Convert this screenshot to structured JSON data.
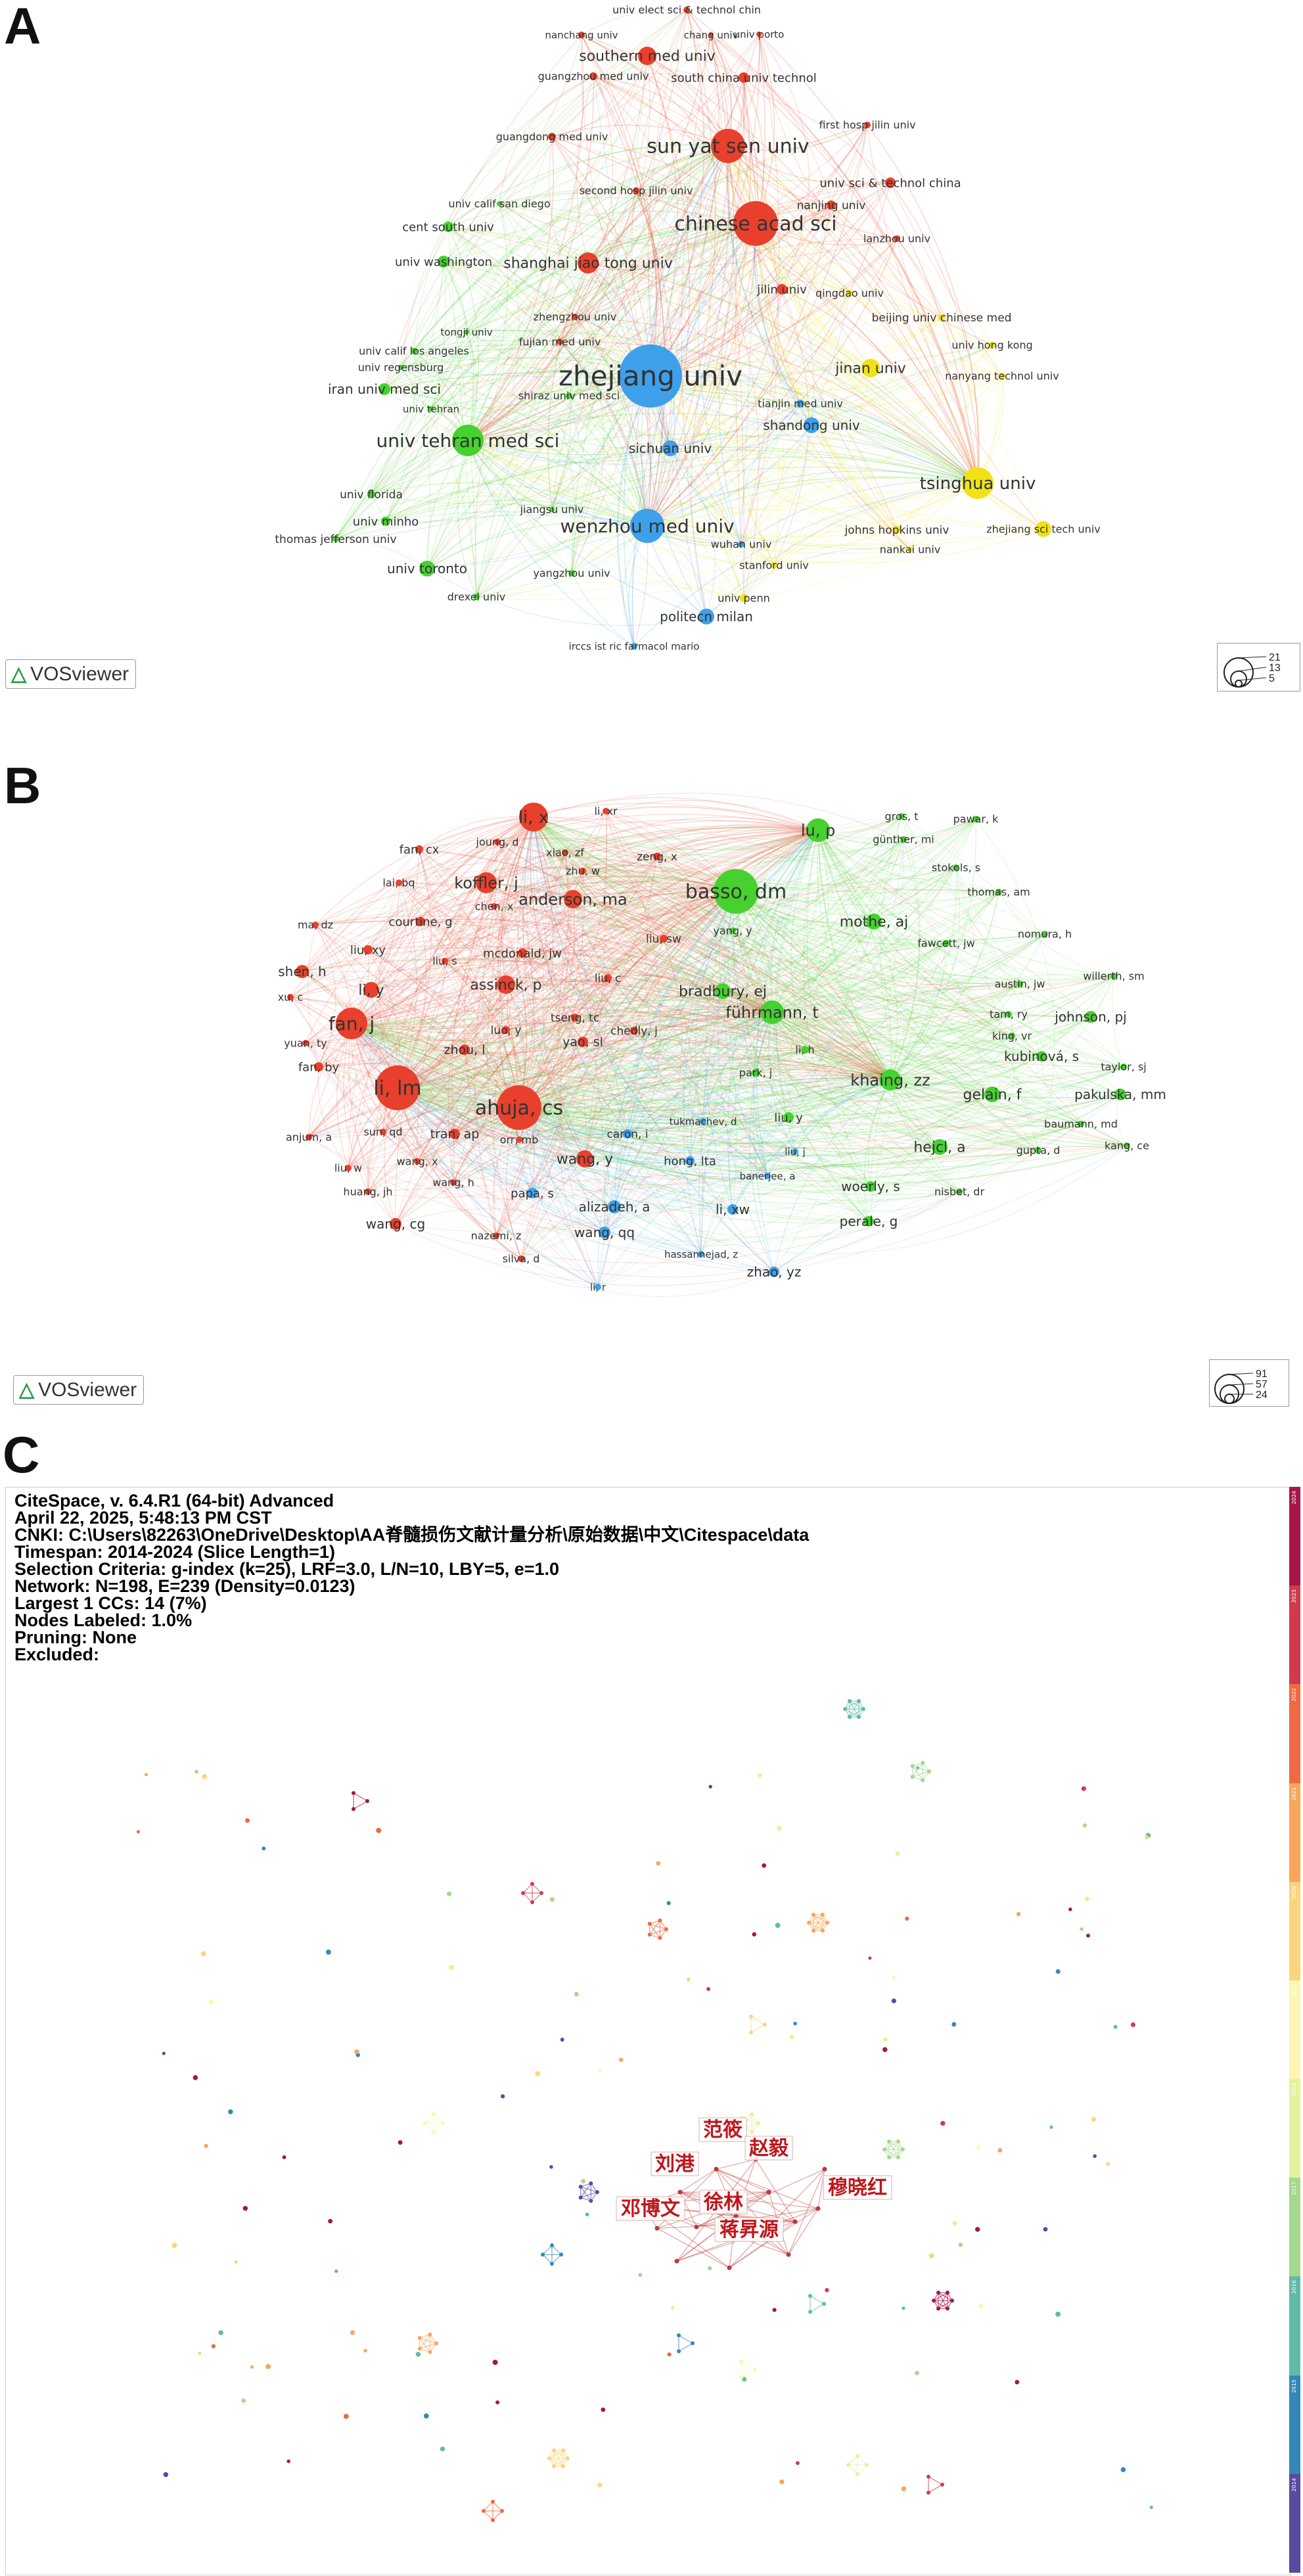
{
  "panels": {
    "a": {
      "letter": "A"
    },
    "b": {
      "letter": "B"
    },
    "c": {
      "letter": "C"
    }
  },
  "vos_logo": "VOSviewer",
  "legend_a": [
    "21",
    "13",
    "5"
  ],
  "legend_b": [
    "91",
    "57",
    "24"
  ],
  "colors": {
    "red": "#e8402c",
    "green": "#46d12f",
    "blue": "#3ea0ea",
    "yellow": "#f0e214",
    "orange_edge": "#f3a25a",
    "cn_label": "#c0151b"
  },
  "network_a": {
    "nodes": [
      {
        "label": "zhejiang univ",
        "cluster": "blue",
        "size": "xl"
      },
      {
        "label": "chinese acad sci",
        "cluster": "red",
        "size": "l"
      },
      {
        "label": "sun yat sen univ",
        "cluster": "red",
        "size": "l"
      },
      {
        "label": "univ tehran med sci",
        "cluster": "green",
        "size": "l"
      },
      {
        "label": "wenzhou med univ",
        "cluster": "blue",
        "size": "l"
      },
      {
        "label": "tsinghua univ",
        "cluster": "yellow",
        "size": "l"
      },
      {
        "label": "shanghai jiao tong univ",
        "cluster": "red",
        "size": "m"
      },
      {
        "label": "southern med univ",
        "cluster": "red",
        "size": "m"
      },
      {
        "label": "jinan univ",
        "cluster": "yellow",
        "size": "m"
      },
      {
        "label": "sichuan univ",
        "cluster": "blue",
        "size": "m"
      },
      {
        "label": "shandong univ",
        "cluster": "blue",
        "size": "m"
      },
      {
        "label": "politecn milan",
        "cluster": "blue",
        "size": "m"
      },
      {
        "label": "univ toronto",
        "cluster": "green",
        "size": "m"
      },
      {
        "label": "iran univ med sci",
        "cluster": "green",
        "size": "m"
      },
      {
        "label": "south china univ technol",
        "cluster": "red",
        "size": "s"
      },
      {
        "label": "univ sci & technol china",
        "cluster": "red",
        "size": "s"
      },
      {
        "label": "nanjing univ",
        "cluster": "red",
        "size": "s"
      },
      {
        "label": "cent south univ",
        "cluster": "green",
        "size": "s"
      },
      {
        "label": "univ washington",
        "cluster": "green",
        "size": "s"
      },
      {
        "label": "univ minho",
        "cluster": "green",
        "size": "s"
      },
      {
        "label": "univ florida",
        "cluster": "green",
        "size": "s"
      },
      {
        "label": "thomas jefferson univ",
        "cluster": "green",
        "size": "s"
      },
      {
        "label": "drexel univ",
        "cluster": "green",
        "size": "s"
      },
      {
        "label": "yangzhou univ",
        "cluster": "green",
        "size": "s"
      },
      {
        "label": "jiangsu univ",
        "cluster": "green",
        "size": "s"
      },
      {
        "label": "univ calif los angeles",
        "cluster": "green",
        "size": "s"
      },
      {
        "label": "univ regensburg",
        "cluster": "green",
        "size": "s"
      },
      {
        "label": "univ calif san diego",
        "cluster": "green",
        "size": "s"
      },
      {
        "label": "univ tehran",
        "cluster": "green",
        "size": "s"
      },
      {
        "label": "shiraz univ med sci",
        "cluster": "green",
        "size": "s"
      },
      {
        "label": "tongji univ",
        "cluster": "green",
        "size": "s"
      },
      {
        "label": "beijing univ chinese med",
        "cluster": "yellow",
        "size": "s"
      },
      {
        "label": "univ hong kong",
        "cluster": "yellow",
        "size": "s"
      },
      {
        "label": "nanyang technol univ",
        "cluster": "yellow",
        "size": "s"
      },
      {
        "label": "zhejiang sci tech univ",
        "cluster": "yellow",
        "size": "s"
      },
      {
        "label": "johns hopkins univ",
        "cluster": "yellow",
        "size": "s"
      },
      {
        "label": "nankai univ",
        "cluster": "yellow",
        "size": "s"
      },
      {
        "label": "stanford univ",
        "cluster": "yellow",
        "size": "s"
      },
      {
        "label": "univ penn",
        "cluster": "yellow",
        "size": "s"
      },
      {
        "label": "qingdao univ",
        "cluster": "yellow",
        "size": "s"
      },
      {
        "label": "tianjin med univ",
        "cluster": "blue",
        "size": "s"
      },
      {
        "label": "wuhan univ",
        "cluster": "blue",
        "size": "s"
      },
      {
        "label": "irccs ist ric farmacol mario",
        "cluster": "blue",
        "size": "s"
      },
      {
        "label": "jilin univ",
        "cluster": "red",
        "size": "s"
      },
      {
        "label": "lanzhou univ",
        "cluster": "red",
        "size": "s"
      },
      {
        "label": "first hosp jilin univ",
        "cluster": "red",
        "size": "s"
      },
      {
        "label": "second hosp jilin univ",
        "cluster": "red",
        "size": "s"
      },
      {
        "label": "guangdong med univ",
        "cluster": "red",
        "size": "s"
      },
      {
        "label": "guangzhou med univ",
        "cluster": "red",
        "size": "s"
      },
      {
        "label": "zhengzhou univ",
        "cluster": "red",
        "size": "s"
      },
      {
        "label": "fujian med univ",
        "cluster": "red",
        "size": "s"
      },
      {
        "label": "nanchang univ",
        "cluster": "red",
        "size": "s"
      },
      {
        "label": "chang univ",
        "cluster": "red",
        "size": "s"
      },
      {
        "label": "univ porto",
        "cluster": "red",
        "size": "s"
      },
      {
        "label": "univ elect sci & technol chin",
        "cluster": "red",
        "size": "s"
      }
    ]
  },
  "network_b": {
    "nodes": [
      {
        "label": "basso, dm",
        "cluster": "green",
        "size": "l"
      },
      {
        "label": "ahuja, cs",
        "cluster": "red",
        "size": "l"
      },
      {
        "label": "li, lm",
        "cluster": "red",
        "size": "l"
      },
      {
        "label": "fan, j",
        "cluster": "red",
        "size": "m"
      },
      {
        "label": "li, x",
        "cluster": "red",
        "size": "m"
      },
      {
        "label": "lu, p",
        "cluster": "green",
        "size": "m"
      },
      {
        "label": "führmann, t",
        "cluster": "green",
        "size": "m"
      },
      {
        "label": "khaing, zz",
        "cluster": "green",
        "size": "m"
      },
      {
        "label": "koffler, j",
        "cluster": "red",
        "size": "m"
      },
      {
        "label": "anderson, ma",
        "cluster": "red",
        "size": "m"
      },
      {
        "label": "assinck, p",
        "cluster": "red",
        "size": "m"
      },
      {
        "label": "li, y",
        "cluster": "red",
        "size": "m"
      },
      {
        "label": "shen, h",
        "cluster": "red",
        "size": "s"
      },
      {
        "label": "wang, y",
        "cluster": "red",
        "size": "m"
      },
      {
        "label": "mothe, aj",
        "cluster": "green",
        "size": "m"
      },
      {
        "label": "bradbury, ej",
        "cluster": "green",
        "size": "m"
      },
      {
        "label": "hejcl, a",
        "cluster": "green",
        "size": "m"
      },
      {
        "label": "gelain, f",
        "cluster": "green",
        "size": "m"
      },
      {
        "label": "johnson, pj",
        "cluster": "green",
        "size": "s"
      },
      {
        "label": "kubinová, s",
        "cluster": "green",
        "size": "s"
      },
      {
        "label": "pakulska, mm",
        "cluster": "green",
        "size": "s"
      },
      {
        "label": "woerly, s",
        "cluster": "green",
        "size": "s"
      },
      {
        "label": "perale, g",
        "cluster": "green",
        "size": "s"
      },
      {
        "label": "alizadeh, a",
        "cluster": "blue",
        "size": "s"
      },
      {
        "label": "wang, qq",
        "cluster": "blue",
        "size": "s"
      },
      {
        "label": "li, xw",
        "cluster": "blue",
        "size": "s"
      },
      {
        "label": "zhao, yz",
        "cluster": "blue",
        "size": "s"
      },
      {
        "label": "hong, lta",
        "cluster": "blue",
        "size": "s"
      },
      {
        "label": "liu, y",
        "cluster": "green",
        "size": "s"
      },
      {
        "label": "papa, s",
        "cluster": "blue",
        "size": "s"
      },
      {
        "label": "caron, i",
        "cluster": "blue",
        "size": "s"
      },
      {
        "label": "wang, cg",
        "cluster": "red",
        "size": "s"
      },
      {
        "label": "tran, ap",
        "cluster": "red",
        "size": "s"
      },
      {
        "label": "zhou, l",
        "cluster": "red",
        "size": "s"
      },
      {
        "label": "yao, sl",
        "cluster": "red",
        "size": "s"
      },
      {
        "label": "fan, by",
        "cluster": "red",
        "size": "s"
      },
      {
        "label": "fan, cx",
        "cluster": "red",
        "size": "s"
      },
      {
        "label": "liu, xy",
        "cluster": "red",
        "size": "s"
      },
      {
        "label": "courtine, g",
        "cluster": "red",
        "size": "s"
      },
      {
        "label": "mcdonald, jw",
        "cluster": "red",
        "size": "s"
      },
      {
        "label": "luo, y",
        "cluster": "red",
        "size": "s"
      },
      {
        "label": "tseng, tc",
        "cluster": "red",
        "size": "s"
      },
      {
        "label": "chedly, j",
        "cluster": "red",
        "size": "s"
      },
      {
        "label": "liu, c",
        "cluster": "red",
        "size": "s"
      },
      {
        "label": "liu, sw",
        "cluster": "red",
        "size": "s"
      },
      {
        "label": "zeng, x",
        "cluster": "red",
        "size": "s"
      },
      {
        "label": "zhu, w",
        "cluster": "red",
        "size": "s"
      },
      {
        "label": "xiao, zf",
        "cluster": "red",
        "size": "s"
      },
      {
        "label": "joung, d",
        "cluster": "red",
        "size": "s"
      },
      {
        "label": "li, xr",
        "cluster": "red",
        "size": "s"
      },
      {
        "label": "lai, bq",
        "cluster": "red",
        "size": "s"
      },
      {
        "label": "chen, x",
        "cluster": "red",
        "size": "s"
      },
      {
        "label": "ma, dz",
        "cluster": "red",
        "size": "s"
      },
      {
        "label": "xu, c",
        "cluster": "red",
        "size": "s"
      },
      {
        "label": "yuan, ty",
        "cluster": "red",
        "size": "s"
      },
      {
        "label": "liu, s",
        "cluster": "red",
        "size": "s"
      },
      {
        "label": "anjum, a",
        "cluster": "red",
        "size": "s"
      },
      {
        "label": "sun, qd",
        "cluster": "red",
        "size": "s"
      },
      {
        "label": "liu, w",
        "cluster": "red",
        "size": "s"
      },
      {
        "label": "huang, jh",
        "cluster": "red",
        "size": "s"
      },
      {
        "label": "wang, x",
        "cluster": "red",
        "size": "s"
      },
      {
        "label": "wang, h",
        "cluster": "red",
        "size": "s"
      },
      {
        "label": "orr, mb",
        "cluster": "red",
        "size": "s"
      },
      {
        "label": "nazemi, z",
        "cluster": "red",
        "size": "s"
      },
      {
        "label": "silva, d",
        "cluster": "red",
        "size": "s"
      },
      {
        "label": "li, r",
        "cluster": "blue",
        "size": "s"
      },
      {
        "label": "hassannejad, z",
        "cluster": "blue",
        "size": "s"
      },
      {
        "label": "tukmachev, d",
        "cluster": "blue",
        "size": "s"
      },
      {
        "label": "banerjee, a",
        "cluster": "blue",
        "size": "s"
      },
      {
        "label": "liu, j",
        "cluster": "blue",
        "size": "s"
      },
      {
        "label": "park, j",
        "cluster": "green",
        "size": "s"
      },
      {
        "label": "li, h",
        "cluster": "green",
        "size": "s"
      },
      {
        "label": "yang, y",
        "cluster": "green",
        "size": "s"
      },
      {
        "label": "gros, t",
        "cluster": "green",
        "size": "s"
      },
      {
        "label": "pawar, k",
        "cluster": "green",
        "size": "s"
      },
      {
        "label": "günther, mi",
        "cluster": "green",
        "size": "s"
      },
      {
        "label": "stokols, s",
        "cluster": "green",
        "size": "s"
      },
      {
        "label": "thomas, am",
        "cluster": "green",
        "size": "s"
      },
      {
        "label": "fawcett, jw",
        "cluster": "green",
        "size": "s"
      },
      {
        "label": "nomura, h",
        "cluster": "green",
        "size": "s"
      },
      {
        "label": "austin, jw",
        "cluster": "green",
        "size": "s"
      },
      {
        "label": "willerth, sm",
        "cluster": "green",
        "size": "s"
      },
      {
        "label": "tam, ry",
        "cluster": "green",
        "size": "s"
      },
      {
        "label": "king, vr",
        "cluster": "green",
        "size": "s"
      },
      {
        "label": "taylor, sj",
        "cluster": "green",
        "size": "s"
      },
      {
        "label": "baumann, md",
        "cluster": "green",
        "size": "s"
      },
      {
        "label": "gupta, d",
        "cluster": "green",
        "size": "s"
      },
      {
        "label": "kang, ce",
        "cluster": "green",
        "size": "s"
      },
      {
        "label": "nisbet, dr",
        "cluster": "green",
        "size": "s"
      }
    ]
  },
  "citespace": {
    "info": [
      "CiteSpace, v. 6.4.R1 (64-bit) Advanced",
      "April 22, 2025, 5:48:13 PM CST",
      "CNKI: C:\\Users\\82263\\OneDrive\\Desktop\\AA脊髓损伤文献计量分析\\原始数据\\中文\\Citespace\\data",
      "Timespan: 2014-2024 (Slice Length=1)",
      "Selection Criteria: g-index (k=25), LRF=3.0, L/N=10, LBY=5, e=1.0",
      "Network: N=198, E=239 (Density=0.0123)",
      "Largest 1 CCs: 14 (7%)",
      "Nodes Labeled: 1.0%",
      "Pruning: None",
      "Excluded:"
    ],
    "labels": [
      "范筱",
      "赵毅",
      "刘港",
      "穆晓红",
      "邓博文",
      "徐林",
      "蒋昇源"
    ],
    "years": [
      "2024",
      "2023",
      "2022",
      "2021",
      "2020",
      "2019",
      "2018",
      "2017",
      "2016",
      "2015",
      "2014"
    ],
    "year_colors": [
      "#a6164a",
      "#cf3b4a",
      "#ec6a45",
      "#f8a65a",
      "#fbd47c",
      "#fef6b0",
      "#e4f29c",
      "#a4d88f",
      "#5fbba8",
      "#3388b8",
      "#5a4aa0"
    ]
  }
}
